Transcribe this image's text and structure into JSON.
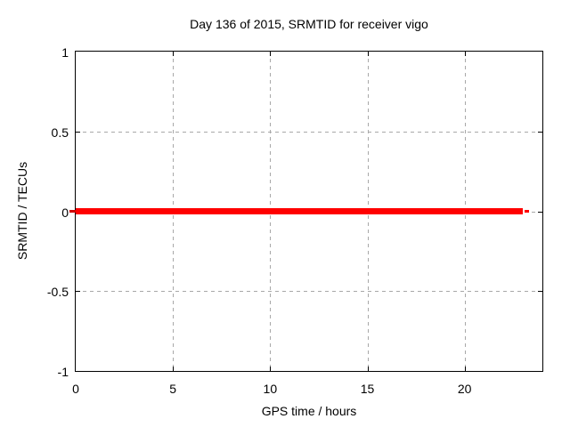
{
  "chart_data": {
    "type": "line",
    "title": "Day 136 of 2015, SRMTID for receiver vigo",
    "xlabel": "GPS time / hours",
    "ylabel": "SRMTID / TECUs",
    "xlim": [
      0,
      24
    ],
    "ylim": [
      -1,
      1
    ],
    "xticks": [
      0,
      5,
      10,
      15,
      20
    ],
    "yticks": [
      -1,
      -0.5,
      0,
      0.5,
      1
    ],
    "grid": true,
    "legend_position": "none",
    "series": [
      {
        "name": "SRMTID",
        "color": "#ff0000",
        "x": [
          0,
          23
        ],
        "y": [
          0,
          0
        ],
        "style": "thick-horizontal-line"
      }
    ]
  },
  "colors": {
    "background": "#ffffff",
    "axis_border": "#000000",
    "grid": "#a8a8a8",
    "text": "#000000",
    "series_red": "#ff0000"
  }
}
